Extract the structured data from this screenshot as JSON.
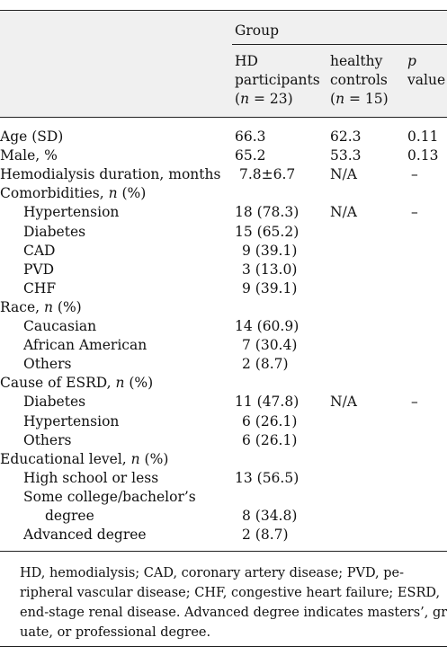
{
  "header": {
    "group_label": "Group",
    "hd_col": [
      "HD",
      "participants",
      "(n = 23)"
    ],
    "hc_col": [
      "healthy",
      "controls",
      "(n = 15)"
    ],
    "p_col": [
      "p",
      "value"
    ]
  },
  "rows": [
    {
      "label": "Age (SD)",
      "hd": "66.3",
      "hc": "62.3",
      "p": "0.11"
    },
    {
      "label": "Male, %",
      "hd": "65.2",
      "hc": "53.3",
      "p": "0.13"
    },
    {
      "label": "Hemodialysis duration, months",
      "hd": "7.8±6.7",
      "hc": "N/A",
      "p": "–"
    },
    {
      "label": "Comorbidities, n (%)",
      "hd": "",
      "hc": "",
      "p": ""
    },
    {
      "label": "Hypertension",
      "hd": "18 (78.3)",
      "hc": "N/A",
      "p": "–"
    },
    {
      "label": "Diabetes",
      "hd": "15 (65.2)",
      "hc": "",
      "p": ""
    },
    {
      "label": "CAD",
      "hd": "9 (39.1)",
      "hc": "",
      "p": ""
    },
    {
      "label": "PVD",
      "hd": "3 (13.0)",
      "hc": "",
      "p": ""
    },
    {
      "label": "CHF",
      "hd": "9 (39.1)",
      "hc": "",
      "p": ""
    },
    {
      "label": "Race, n (%)",
      "hd": "",
      "hc": "",
      "p": ""
    },
    {
      "label": "Caucasian",
      "hd": "14 (60.9)",
      "hc": "",
      "p": ""
    },
    {
      "label": "African American",
      "hd": "7 (30.4)",
      "hc": "",
      "p": ""
    },
    {
      "label": "Others",
      "hd": "2 (8.7)",
      "hc": "",
      "p": ""
    },
    {
      "label": "Cause of ESRD, n (%)",
      "hd": "",
      "hc": "",
      "p": ""
    },
    {
      "label": "Diabetes",
      "hd": "11 (47.8)",
      "hc": "N/A",
      "p": "–"
    },
    {
      "label": "Hypertension",
      "hd": "6 (26.1)",
      "hc": "",
      "p": ""
    },
    {
      "label": "Others",
      "hd": "6 (26.1)",
      "hc": "",
      "p": ""
    },
    {
      "label": "Educational level, n (%)",
      "hd": "",
      "hc": "",
      "p": ""
    },
    {
      "label": "High school or less",
      "hd": "13 (56.5)",
      "hc": "",
      "p": ""
    },
    {
      "label": "Some college/bachelor’s",
      "hd": "",
      "hc": "",
      "p": ""
    },
    {
      "label": "degree",
      "hd": "8 (34.8)",
      "hc": "",
      "p": ""
    },
    {
      "label": "Advanced degree",
      "hd": "2 (8.7)",
      "hc": "",
      "p": ""
    }
  ],
  "footnote": [
    "HD, hemodialysis; CAD, coronary artery disease; PVD, pe-",
    "ripheral vascular disease; CHF, congestive heart failure; ESRD,",
    "end-stage renal disease. Advanced degree indicates masters’, grad-",
    "uate, or professional degree."
  ]
}
